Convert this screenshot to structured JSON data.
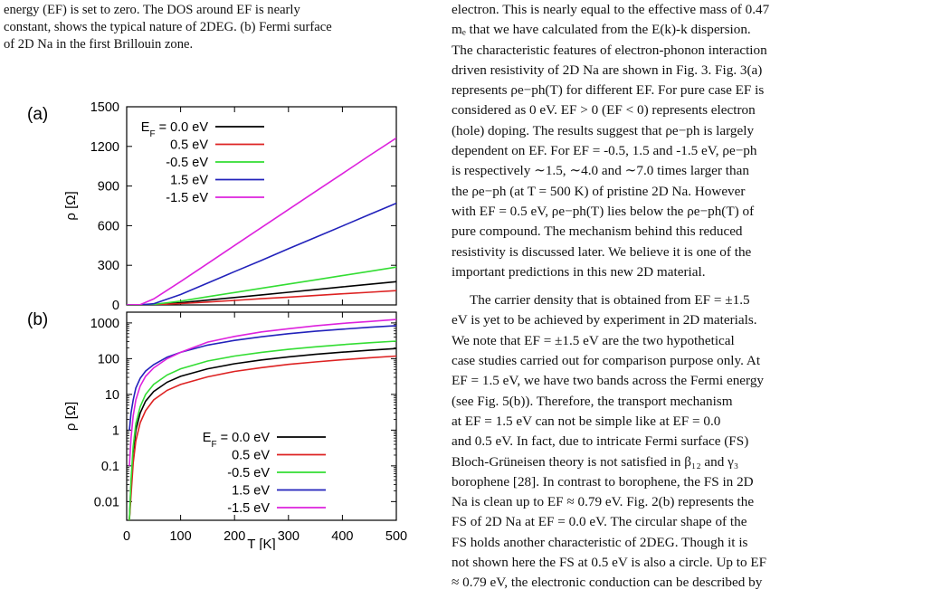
{
  "caption": {
    "line1": "energy (EF) is set to zero. The DOS around EF is nearly",
    "line2": "constant, shows the typical nature of 2DEG. (b) Fermi surface",
    "line3": "of 2D Na in the first Brillouin zone."
  },
  "figure": {
    "panel_a_label": "(a)",
    "panel_b_label": "(b)",
    "ylabel": "ρ [Ω]",
    "xlabel": "T [K]",
    "legend_entries": [
      "Eₑ = 0.0 eV",
      "0.5 eV",
      "-0.5 eV",
      "1.5 eV",
      "-1.5 eV"
    ],
    "legend_first_prefix": "E",
    "legend_first_sub": "F",
    "legend_first_suffix": " = 0.0 eV"
  },
  "chart_data": [
    {
      "type": "line",
      "panel": "(a)",
      "xlabel": "",
      "ylabel": "ρ [Ω]",
      "xlim": [
        0,
        500
      ],
      "ylim": [
        0,
        1500
      ],
      "yticks": [
        "0",
        "300",
        "600",
        "900",
        "1200",
        "1500"
      ],
      "x": [
        0,
        25,
        50,
        100,
        150,
        200,
        250,
        300,
        350,
        400,
        450,
        500
      ],
      "series": [
        {
          "name": "E_F = 0.0 eV",
          "color": "#000000",
          "values": [
            0,
            0.3,
            2.5,
            17,
            36,
            56,
            76,
            96,
            116,
            136,
            156,
            176
          ]
        },
        {
          "name": "0.5 eV",
          "color": "#dd2222",
          "values": [
            0,
            0.2,
            1.5,
            10,
            22,
            34,
            47,
            59,
            71,
            84,
            96,
            108
          ]
        },
        {
          "name": "-0.5 eV",
          "color": "#33dd33",
          "values": [
            0,
            0.5,
            4,
            29,
            62,
            94,
            126,
            158,
            190,
            222,
            254,
            286
          ]
        },
        {
          "name": "1.5 eV",
          "color": "#2222bb",
          "values": [
            0,
            1,
            9,
            79,
            165,
            252,
            338,
            425,
            511,
            597,
            684,
            770
          ]
        },
        {
          "name": "-1.5 eV",
          "color": "#dd22dd",
          "values": [
            0,
            2,
            45,
            177,
            313,
            450,
            586,
            722,
            858,
            994,
            1130,
            1263
          ]
        }
      ]
    },
    {
      "type": "line",
      "panel": "(b)",
      "xlabel": "T [K]",
      "ylabel": "ρ [Ω]",
      "xlim": [
        0,
        500
      ],
      "ylim": [
        0.003,
        2000
      ],
      "log_y": true,
      "xticks": [
        "0",
        "100",
        "200",
        "300",
        "400",
        "500"
      ],
      "yticks": [
        "0.01",
        "0.1",
        "1",
        "10",
        "100",
        "1000"
      ],
      "x": [
        5,
        8,
        12,
        17,
        25,
        35,
        50,
        75,
        100,
        150,
        200,
        250,
        300,
        350,
        400,
        450,
        500
      ],
      "series": [
        {
          "name": "E_F = 0.0 eV",
          "color": "#000000",
          "values": [
            0.003,
            0.03,
            0.25,
            1.0,
            3.0,
            6.5,
            12,
            22,
            32,
            52,
            72,
            92,
            112,
            132,
            152,
            172,
            192
          ]
        },
        {
          "name": "0.5 eV",
          "color": "#dd2222",
          "values": [
            0.003,
            0.015,
            0.12,
            0.5,
            1.6,
            3.5,
            7,
            13,
            19,
            31,
            44,
            56,
            69,
            81,
            93,
            106,
            118
          ]
        },
        {
          "name": "-0.5 eV",
          "color": "#33dd33",
          "values": [
            0.003,
            0.04,
            0.35,
            1.5,
            4.5,
            10,
            19,
            35,
            52,
            86,
            118,
            150,
            182,
            214,
            246,
            278,
            310
          ]
        },
        {
          "name": "1.5 eV",
          "color": "#2222bb",
          "values": [
            1,
            3,
            7,
            15,
            28,
            45,
            68,
            110,
            150,
            240,
            325,
            410,
            500,
            585,
            670,
            755,
            840
          ]
        },
        {
          "name": "-1.5 eV",
          "color": "#dd22dd",
          "values": [
            0.1,
            0.6,
            2.5,
            7,
            17,
            32,
            55,
            100,
            150,
            290,
            420,
            560,
            690,
            830,
            970,
            1100,
            1250
          ]
        }
      ]
    }
  ],
  "body": {
    "p1_lines": [
      "electron. This is nearly equal to the effective mass of 0.47",
      "mₑ that we have calculated from the E(k)-k dispersion.",
      "The characteristic features of electron-phonon interaction",
      "driven resistivity of 2D Na are shown in Fig. 3. Fig. 3(a)",
      "represents ρe−ph(T) for different EF. For pure case EF is",
      "considered as 0 eV. EF > 0 (EF < 0) represents electron",
      "(hole) doping. The results suggest that ρe−ph is largely",
      "dependent on EF. For EF = -0.5, 1.5 and -1.5 eV, ρe−ph",
      "is respectively ∼1.5, ∼4.0 and ∼7.0 times larger than",
      "the ρe−ph (at T = 500 K) of pristine 2D Na. However",
      "with EF = 0.5 eV, ρe−ph(T) lies below the ρe−ph(T) of",
      "pure compound. The mechanism behind this reduced",
      "resistivity is discussed later. We believe it is one of the",
      "important predictions in this new 2D material."
    ],
    "p2_lines": [
      "The carrier density that is obtained from EF = ±1.5",
      "eV is yet to be achieved by experiment in 2D materials.",
      "We note that EF = ±1.5 eV are the two hypothetical",
      "case studies carried out for comparison purpose only. At",
      "EF = 1.5 eV, we have two bands across the Fermi energy",
      "(see Fig. 5(b)). Therefore, the transport mechanism",
      "at EF = 1.5 eV can not be simple like at EF = 0.0",
      "and 0.5 eV. In fact, due to intricate Fermi surface (FS)",
      "Bloch-Grüneisen theory is not satisfied in β₁₂ and γ₃",
      "borophene [28]. In contrast to borophene, the FS in 2D",
      "Na is clean up to EF ≈ 0.79 eV. Fig. 2(b) represents the",
      "FS of 2D Na at EF = 0.0 eV. The circular shape of the",
      "FS holds another characteristic of 2DEG. Though it is",
      "not shown here the FS at 0.5 eV is also a circle. Up to EF",
      "≈ 0.79 eV, the electronic conduction can be described by"
    ]
  }
}
